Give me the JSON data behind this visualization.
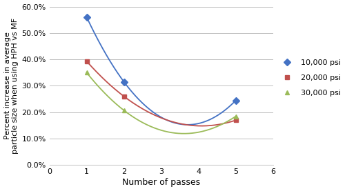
{
  "series": [
    {
      "label": "10,000 psi",
      "x": [
        1,
        2,
        5
      ],
      "y": [
        0.56,
        0.315,
        0.245
      ],
      "color": "#4472C4",
      "marker": "D",
      "markersize": 5
    },
    {
      "label": "20,000 psi",
      "x": [
        1,
        2,
        5
      ],
      "y": [
        0.393,
        0.26,
        0.17
      ],
      "color": "#C0504D",
      "marker": "s",
      "markersize": 5
    },
    {
      "label": "30,000 psi",
      "x": [
        1,
        2,
        5
      ],
      "y": [
        0.35,
        0.207,
        0.185
      ],
      "color": "#9BBB59",
      "marker": "^",
      "markersize": 5
    }
  ],
  "xlabel": "Number of passes",
  "ylabel": "Percent increase in average\nparticle size when using HPH vs MF",
  "xlim": [
    0,
    6
  ],
  "ylim": [
    0.0,
    0.6
  ],
  "yticks": [
    0.0,
    0.1,
    0.2,
    0.3,
    0.4,
    0.5,
    0.6
  ],
  "xticks": [
    0,
    1,
    2,
    3,
    4,
    5,
    6
  ],
  "background_color": "#ffffff",
  "grid_color": "#bfbfbf",
  "smooth_points": 300
}
